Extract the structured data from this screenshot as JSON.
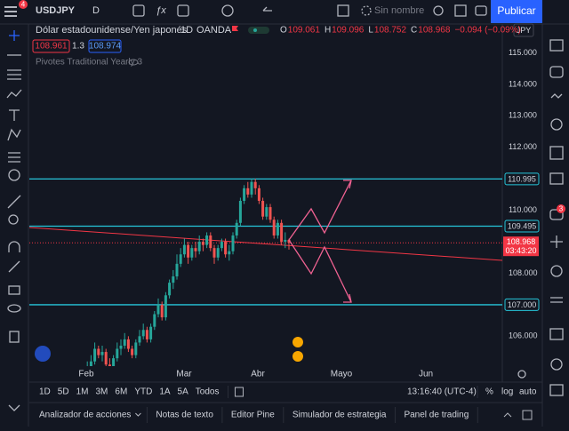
{
  "toolbar": {
    "symbol": "USDJPY",
    "interval": "D",
    "layout_name": "Sin nombre",
    "publish": "Publicar",
    "alerts_badge": "4"
  },
  "legend": {
    "title": "Dólar estadounidense/Yen japonés",
    "interval": "1D",
    "source": "OANDA",
    "ohlc": [
      {
        "label": "O",
        "value": "109.061"
      },
      {
        "label": "H",
        "value": "109.096"
      },
      {
        "label": "L",
        "value": "108.752"
      },
      {
        "label": "C",
        "value": "108.968"
      }
    ],
    "change": "−0.094 (−0.09%)",
    "bid": "108.961",
    "spread": "1.3",
    "ask": "108.974",
    "indicator": "Pivotes Traditional Yearly 3"
  },
  "chart": {
    "currency": "JPY",
    "ylim": [
      105.05,
      115.55
    ],
    "yticks": [
      {
        "value": 115,
        "label": "115.000"
      },
      {
        "value": 114,
        "label": "114.000"
      },
      {
        "value": 113,
        "label": "113.000"
      },
      {
        "value": 112,
        "label": "112.000"
      },
      {
        "value": 110,
        "label": "110.000"
      },
      {
        "value": 108,
        "label": "108.000"
      },
      {
        "value": 106,
        "label": "106.000"
      }
    ],
    "levels": [
      {
        "value": 110.995,
        "label": "110.995"
      },
      {
        "value": 109.495,
        "label": "109.495"
      },
      {
        "value": 107,
        "label": "107.000"
      }
    ],
    "last_price": {
      "value": 108.968,
      "label": "108.968",
      "countdown": "03:43:20"
    },
    "time_labels": [
      "Feb",
      "Mar",
      "Abr",
      "Mayo",
      "Jun"
    ],
    "candles": [
      [
        104.9,
        105.2,
        104.8,
        105.0
      ],
      [
        105.0,
        105.4,
        104.9,
        105.2
      ],
      [
        105.2,
        105.8,
        105.1,
        105.6
      ],
      [
        105.6,
        105.7,
        105.3,
        105.4
      ],
      [
        105.4,
        105.7,
        105.2,
        105.5
      ],
      [
        105.5,
        105.6,
        105.0,
        105.1
      ],
      [
        105.1,
        105.3,
        104.8,
        104.9
      ],
      [
        104.9,
        105.4,
        104.8,
        105.3
      ],
      [
        105.3,
        105.8,
        105.2,
        105.6
      ],
      [
        105.6,
        105.9,
        105.4,
        105.7
      ],
      [
        105.7,
        106.1,
        105.6,
        105.9
      ],
      [
        105.9,
        106.0,
        105.5,
        105.6
      ],
      [
        105.6,
        105.7,
        105.3,
        105.4
      ],
      [
        105.4,
        105.9,
        105.3,
        105.8
      ],
      [
        105.8,
        106.2,
        105.7,
        106.0
      ],
      [
        106.0,
        106.4,
        105.9,
        106.2
      ],
      [
        106.2,
        106.3,
        105.8,
        105.9
      ],
      [
        105.9,
        106.4,
        105.8,
        106.3
      ],
      [
        106.3,
        106.8,
        106.2,
        106.7
      ],
      [
        106.7,
        107.2,
        106.6,
        107.0
      ],
      [
        107.0,
        107.1,
        106.5,
        106.6
      ],
      [
        106.6,
        107.4,
        106.5,
        107.3
      ],
      [
        107.3,
        107.8,
        107.2,
        107.7
      ],
      [
        107.7,
        108.1,
        107.5,
        107.9
      ],
      [
        107.9,
        108.6,
        107.8,
        108.3
      ],
      [
        108.3,
        108.8,
        108.2,
        108.6
      ],
      [
        108.6,
        109.1,
        108.5,
        108.9
      ],
      [
        108.9,
        109.0,
        108.3,
        108.5
      ],
      [
        108.5,
        108.9,
        108.4,
        108.8
      ],
      [
        108.8,
        109.0,
        108.5,
        108.7
      ],
      [
        108.7,
        109.2,
        108.6,
        109.0
      ],
      [
        109.0,
        109.1,
        108.7,
        108.9
      ],
      [
        108.9,
        109.3,
        108.8,
        109.2
      ],
      [
        109.2,
        109.3,
        108.7,
        108.8
      ],
      [
        108.8,
        108.9,
        108.3,
        108.5
      ],
      [
        108.5,
        108.9,
        108.4,
        108.8
      ],
      [
        108.8,
        109.1,
        108.7,
        109.0
      ],
      [
        109.0,
        109.1,
        108.5,
        108.6
      ],
      [
        108.6,
        108.9,
        108.4,
        108.7
      ],
      [
        108.7,
        109.3,
        108.6,
        109.2
      ],
      [
        109.2,
        109.7,
        109.1,
        109.6
      ],
      [
        109.6,
        110.4,
        109.5,
        110.3
      ],
      [
        110.3,
        110.8,
        110.2,
        110.7
      ],
      [
        110.7,
        110.9,
        110.4,
        110.5
      ],
      [
        110.5,
        111.0,
        110.4,
        110.9
      ],
      [
        110.9,
        111.0,
        110.5,
        110.7
      ],
      [
        110.7,
        110.8,
        110.2,
        110.3
      ],
      [
        110.3,
        110.4,
        109.7,
        109.8
      ],
      [
        109.8,
        110.2,
        109.7,
        110.1
      ],
      [
        110.1,
        110.2,
        109.6,
        109.7
      ],
      [
        109.7,
        109.8,
        109.1,
        109.2
      ],
      [
        109.2,
        109.7,
        109.1,
        109.6
      ],
      [
        109.6,
        109.7,
        108.9,
        109.0
      ],
      [
        109.0,
        109.3,
        108.8,
        109.06
      ],
      [
        109.061,
        109.096,
        108.752,
        108.968
      ]
    ]
  },
  "range_buttons": [
    "1D",
    "5D",
    "1M",
    "3M",
    "6M",
    "YTD",
    "1A",
    "5A",
    "Todos"
  ],
  "clock": "13:16:40 (UTC-4)",
  "scale_options": [
    "%",
    "log",
    "auto"
  ],
  "tabs": [
    "Analizador de acciones",
    "Notas de texto",
    "Editor Pine",
    "Simulador de estrategia",
    "Panel de trading"
  ],
  "chat_badge": "3"
}
